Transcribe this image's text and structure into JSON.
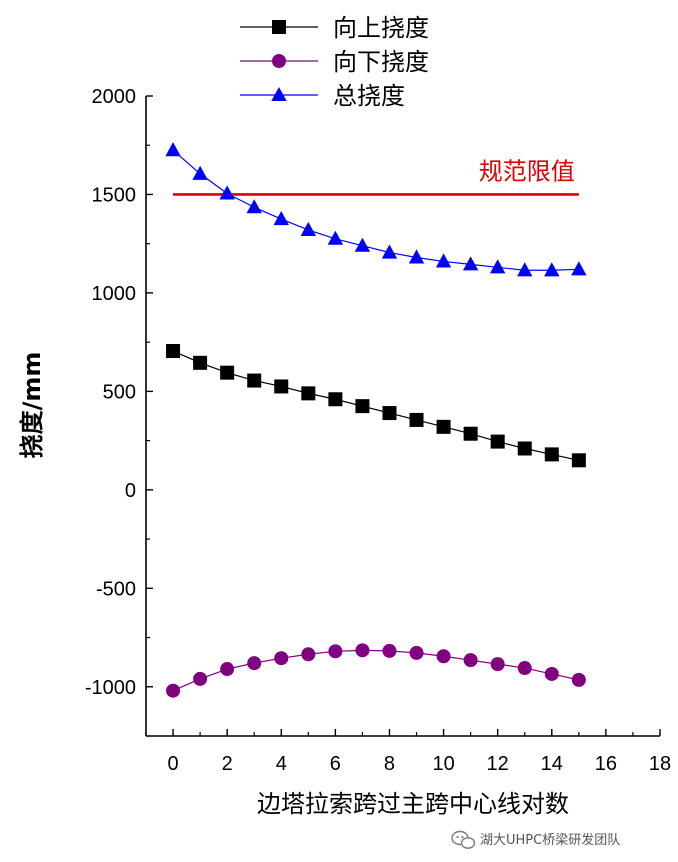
{
  "chart_data": {
    "type": "line",
    "xlabel": "边塔拉索跨过主跨中心线对数",
    "ylabel": "挠度/mm",
    "xlim": [
      -1,
      18
    ],
    "ylim": [
      -1250,
      2000
    ],
    "xticks": [
      0,
      2,
      4,
      6,
      8,
      10,
      12,
      14,
      16,
      18
    ],
    "yticks": [
      -1000,
      -500,
      0,
      500,
      1000,
      1500,
      2000
    ],
    "xtick_labels": [
      "0",
      "2",
      "4",
      "6",
      "8",
      "10",
      "12",
      "14",
      "16",
      "18"
    ],
    "ytick_labels": [
      "-1000",
      "-500",
      "0",
      "500",
      "1000",
      "1500",
      "2000"
    ],
    "legend_position": "top-center",
    "x": [
      0,
      1,
      2,
      3,
      4,
      5,
      6,
      7,
      8,
      9,
      10,
      11,
      12,
      13,
      14,
      15
    ],
    "series": [
      {
        "name": "向上挠度",
        "marker": "square",
        "color": "#000000",
        "values": [
          705,
          645,
          595,
          555,
          525,
          490,
          460,
          425,
          390,
          355,
          320,
          285,
          245,
          210,
          180,
          150
        ]
      },
      {
        "name": "向下挠度",
        "marker": "circle",
        "color": "#800080",
        "values": [
          -1020,
          -960,
          -910,
          -880,
          -855,
          -835,
          -820,
          -815,
          -818,
          -828,
          -845,
          -865,
          -885,
          -905,
          -935,
          -965
        ]
      },
      {
        "name": "总挠度",
        "marker": "triangle",
        "color": "#0000ff",
        "values": [
          1725,
          1605,
          1505,
          1435,
          1375,
          1320,
          1275,
          1240,
          1205,
          1180,
          1160,
          1145,
          1130,
          1115,
          1115,
          1120
        ]
      }
    ],
    "limit_line": {
      "label": "规范限值",
      "value": 1500,
      "x_range": [
        0,
        15
      ],
      "color": "#e00000"
    }
  },
  "watermark": {
    "text": "湖大UHPC桥梁研发团队",
    "icon": "wechat-icon"
  }
}
